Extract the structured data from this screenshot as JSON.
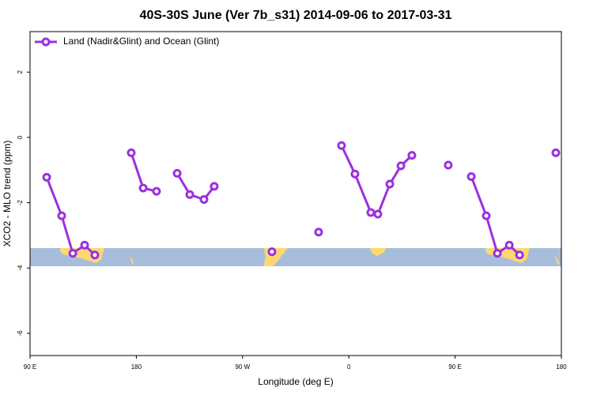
{
  "chart_data": {
    "type": "line",
    "title": "40S-30S June (Ver 7b_s31)   2014-09-06 to 2017-03-31",
    "x_label": "Longitude (deg E)",
    "y_label": "XCO2 - MLO trend (ppm)",
    "xlim": [
      90,
      540
    ],
    "xticks": [
      {
        "value": 90,
        "label": "90 E"
      },
      180,
      {
        "value": 270,
        "label": "90 W"
      },
      {
        "value": 360,
        "label": "0"
      },
      {
        "value": 450,
        "label": "90 E"
      },
      {
        "value": 540,
        "label": "180"
      }
    ],
    "ylim": [
      -6.68,
      3.24
    ],
    "yticks": [
      2,
      0,
      -2,
      -4,
      -6
    ],
    "legend": "top-left",
    "series": [
      {
        "name": "Land (Nadir&Glint) and Ocean (Glint)",
        "color": "#9b30e0",
        "x": [
          104.1,
          116.8,
          126.2,
          136.2,
          144.9,
          null,
          175.7,
          185.8,
          197.1,
          null,
          214.6,
          225.3,
          237.3,
          246.0,
          null,
          294.9,
          null,
          334.4,
          null,
          353.8,
          365.2,
          378.6,
          384.6,
          394.7,
          404.1,
          413.4,
          null,
          444.2,
          null,
          463.7,
          476.4,
          485.8,
          495.9,
          504.6,
          null,
          535.3
        ],
        "values": [
          -1.22,
          -2.4,
          -3.55,
          -3.3,
          -3.6,
          null,
          -0.47,
          -1.55,
          -1.65,
          null,
          -1.1,
          -1.75,
          -1.9,
          -1.5,
          null,
          -3.5,
          null,
          -2.9,
          null,
          -0.25,
          -1.12,
          -2.3,
          -2.35,
          -1.43,
          -0.87,
          -0.55,
          null,
          -0.85,
          null,
          -1.2,
          -2.4,
          -3.55,
          -3.3,
          -3.6,
          null,
          -0.47
        ]
      }
    ]
  }
}
